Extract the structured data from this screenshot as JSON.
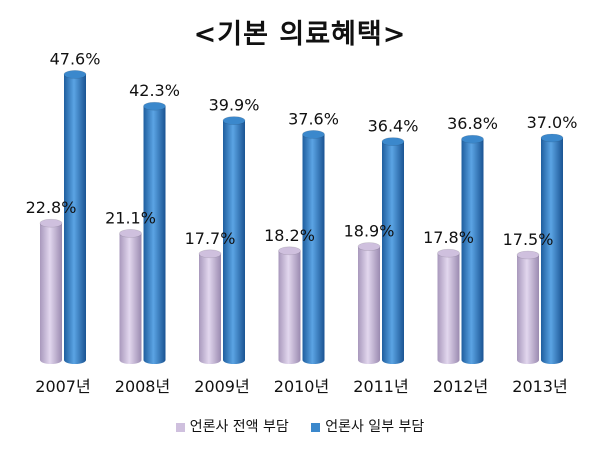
{
  "chart_data": {
    "type": "bar",
    "title": "<기본 의료혜택>",
    "categories": [
      "2007년",
      "2008년",
      "2009년",
      "2010년",
      "2011년",
      "2012년",
      "2013년"
    ],
    "series": [
      {
        "name": "언론사 전액 부담",
        "values": [
          22.8,
          21.1,
          17.7,
          18.2,
          18.9,
          17.8,
          17.5
        ],
        "labels": [
          "22.8%",
          "21.1%",
          "17.7%",
          "18.2%",
          "18.9%",
          "17.8%",
          "17.5%"
        ],
        "color": "#CFC0DE"
      },
      {
        "name": "언론사 일부 부담",
        "values": [
          47.6,
          42.3,
          39.9,
          37.6,
          36.4,
          36.8,
          37.0
        ],
        "labels": [
          "47.6%",
          "42.3%",
          "39.9%",
          "37.6%",
          "36.4%",
          "36.8%",
          "37.0%"
        ],
        "color": "#3B88CC"
      }
    ],
    "ylim": [
      0,
      50
    ],
    "grid": false,
    "legend_position": "bottom",
    "style": "3d-cylinder"
  }
}
